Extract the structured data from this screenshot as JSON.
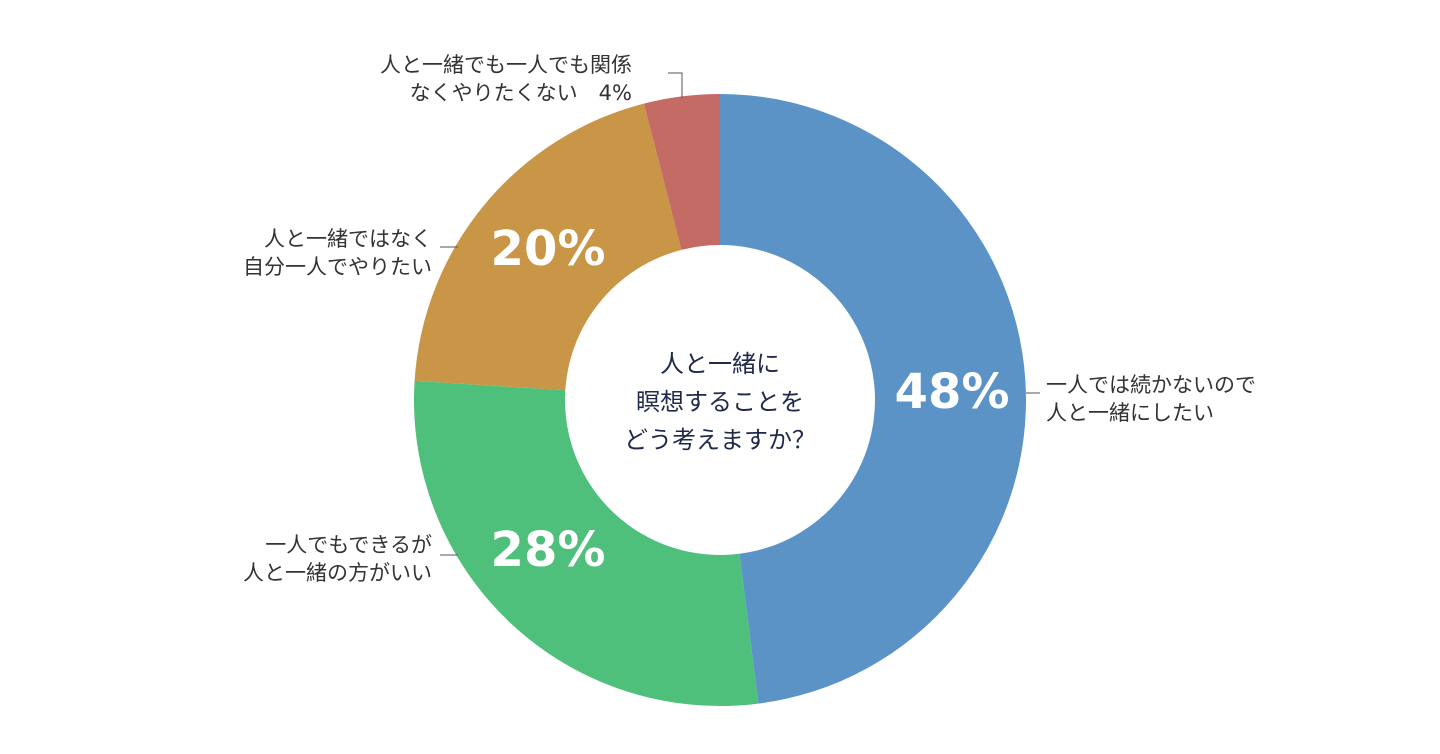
{
  "chart_data": {
    "type": "pie",
    "variant": "donut",
    "center_text": [
      "人と一緒に",
      "瞑想することを",
      "どう考えますか？"
    ],
    "slices": [
      {
        "value": 48,
        "percent_label": "48%",
        "label_lines": [
          "一人では続かないので",
          "人と一緒にしたい"
        ],
        "color": "#5b93c7"
      },
      {
        "value": 28,
        "percent_label": "28%",
        "label_lines": [
          "一人でもできるが",
          "人と一緒の方がいい"
        ],
        "color": "#4ec07b"
      },
      {
        "value": 20,
        "percent_label": "20%",
        "label_lines": [
          "人と一緒ではなく",
          "自分一人でやりたい"
        ],
        "color": "#c99547"
      },
      {
        "value": 4,
        "percent_label": "4%",
        "label_lines": [
          "人と一緒でも一人でも関係",
          "なくやりたくない"
        ],
        "color": "#c46b66"
      }
    ]
  }
}
